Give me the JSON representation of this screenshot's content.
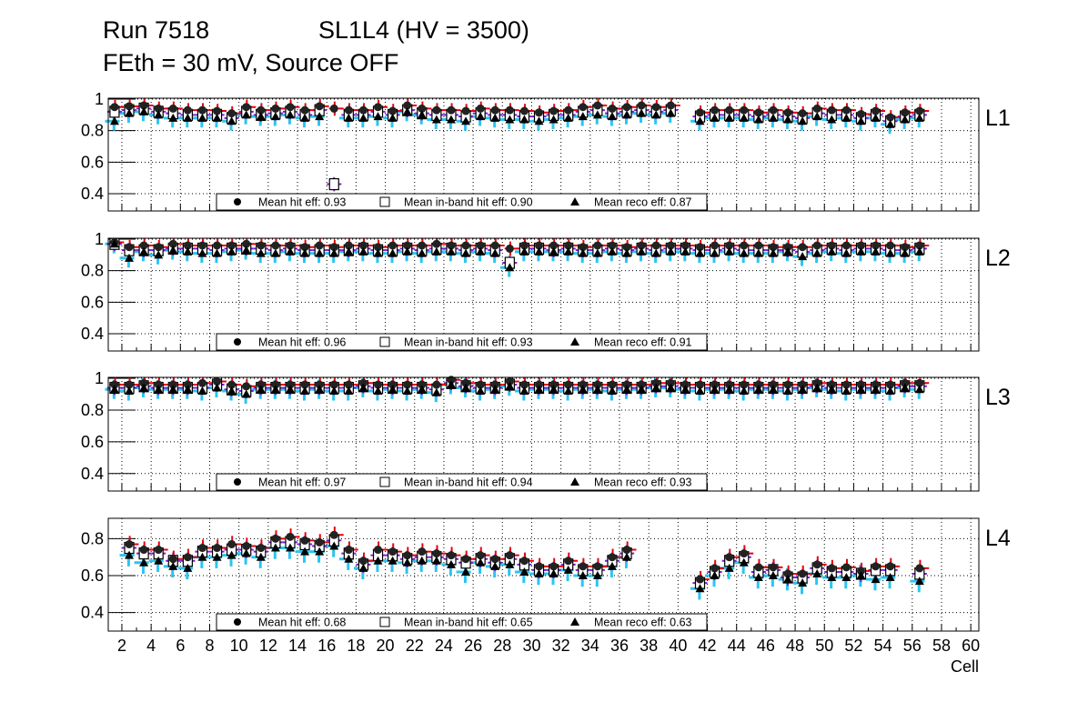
{
  "title": {
    "run": "Run 7518",
    "chamber": "SL1L4 (HV = 3500)",
    "settings": "FEth = 30 mV, Source OFF"
  },
  "chart_data": {
    "type": "scatter",
    "xlabel": "Cell",
    "xlim": [
      1.07,
      60.55
    ],
    "xticks": [
      2,
      4,
      6,
      8,
      10,
      12,
      14,
      16,
      18,
      20,
      22,
      24,
      26,
      28,
      30,
      32,
      34,
      36,
      38,
      40,
      42,
      44,
      46,
      48,
      50,
      52,
      54,
      56,
      58,
      60
    ],
    "grid": true,
    "colors": {
      "hit": "#e8000b",
      "inband": "#7b1fd6",
      "reco": "#2bc4f2",
      "marker": "#000000"
    },
    "legend_labels": {
      "hit": "Mean hit  eff: ",
      "inband": "Mean in-band hit eff: ",
      "reco": "Mean reco eff: "
    },
    "panels": [
      {
        "label": "L1",
        "ylim": [
          0.29,
          1.006
        ],
        "yticks": [
          0.4,
          0.6,
          0.8,
          1
        ],
        "ytick_labels": [
          "0.4",
          "0.6",
          "0.8",
          "1"
        ],
        "legend": {
          "hit": "0.93",
          "inband": "0.90",
          "reco": "0.87"
        },
        "cells": [
          1,
          2,
          3,
          4,
          5,
          6,
          7,
          8,
          9,
          10,
          11,
          12,
          13,
          14,
          15,
          16,
          17,
          18,
          19,
          20,
          21,
          22,
          23,
          24,
          25,
          26,
          27,
          28,
          29,
          30,
          31,
          32,
          33,
          34,
          35,
          36,
          37,
          38,
          39,
          41,
          42,
          43,
          44,
          45,
          46,
          47,
          48,
          49,
          50,
          51,
          52,
          53,
          54,
          55,
          56
        ],
        "hit": [
          0.95,
          0.955,
          0.96,
          0.94,
          0.94,
          0.93,
          0.93,
          0.925,
          0.91,
          0.95,
          0.93,
          0.94,
          0.95,
          0.93,
          0.955,
          0.94,
          0.93,
          0.93,
          0.95,
          0.925,
          0.96,
          0.94,
          0.93,
          0.93,
          0.925,
          0.94,
          0.93,
          0.93,
          0.925,
          0.915,
          0.925,
          0.93,
          0.95,
          0.96,
          0.94,
          0.95,
          0.96,
          0.95,
          0.96,
          0.915,
          0.93,
          0.93,
          0.93,
          0.915,
          0.93,
          0.915,
          0.91,
          0.94,
          0.93,
          0.93,
          0.905,
          0.925,
          0.885,
          0.915,
          0.925
        ],
        "inband": [
          0.92,
          0.93,
          0.94,
          0.92,
          0.91,
          0.9,
          0.9,
          0.9,
          0.88,
          0.92,
          0.9,
          0.91,
          0.92,
          0.9,
          0.93,
          0.46,
          0.9,
          0.9,
          0.92,
          0.9,
          0.93,
          0.91,
          0.9,
          0.9,
          0.89,
          0.91,
          0.9,
          0.9,
          0.89,
          0.89,
          0.9,
          0.9,
          0.92,
          0.93,
          0.91,
          0.92,
          0.93,
          0.92,
          0.93,
          0.89,
          0.9,
          0.9,
          0.9,
          0.89,
          0.9,
          0.89,
          0.88,
          0.91,
          0.9,
          0.9,
          0.88,
          0.9,
          0.86,
          0.89,
          0.9
        ],
        "reco": [
          0.86,
          0.91,
          0.92,
          0.9,
          0.88,
          0.88,
          0.88,
          0.88,
          0.86,
          0.9,
          0.89,
          0.89,
          0.9,
          0.88,
          0.89,
          null,
          0.88,
          0.88,
          0.89,
          0.88,
          0.92,
          0.9,
          0.87,
          0.87,
          0.86,
          0.89,
          0.88,
          0.87,
          0.87,
          0.86,
          0.87,
          0.88,
          0.89,
          0.9,
          0.89,
          0.9,
          0.91,
          0.9,
          0.91,
          0.86,
          0.88,
          0.88,
          0.88,
          0.87,
          0.88,
          0.87,
          0.86,
          0.89,
          0.87,
          0.88,
          0.86,
          0.88,
          0.84,
          0.87,
          0.88
        ]
      },
      {
        "label": "L2",
        "ylim": [
          0.29,
          1.006
        ],
        "yticks": [
          0.4,
          0.6,
          0.8,
          1
        ],
        "ytick_labels": [
          "0.4",
          "0.6",
          "0.8",
          "1"
        ],
        "legend": {
          "hit": "0.96",
          "inband": "0.93",
          "reco": "0.91"
        },
        "cells": [
          1,
          2,
          3,
          4,
          5,
          6,
          7,
          8,
          9,
          10,
          11,
          12,
          13,
          14,
          15,
          16,
          17,
          18,
          19,
          20,
          21,
          22,
          23,
          24,
          25,
          26,
          27,
          28,
          29,
          30,
          31,
          32,
          33,
          34,
          35,
          36,
          37,
          38,
          39,
          40,
          41,
          42,
          43,
          44,
          45,
          46,
          47,
          48,
          49,
          50,
          51,
          52,
          53,
          54,
          55,
          56
        ],
        "hit": [
          0.98,
          0.95,
          0.96,
          0.95,
          0.97,
          0.96,
          0.96,
          0.96,
          0.96,
          0.97,
          0.96,
          0.96,
          0.96,
          0.95,
          0.96,
          0.95,
          0.96,
          0.96,
          0.95,
          0.96,
          0.96,
          0.96,
          0.97,
          0.96,
          0.96,
          0.96,
          0.96,
          0.94,
          0.96,
          0.96,
          0.96,
          0.96,
          0.95,
          0.96,
          0.96,
          0.95,
          0.96,
          0.96,
          0.96,
          0.96,
          0.95,
          0.96,
          0.96,
          0.96,
          0.96,
          0.95,
          0.95,
          0.95,
          0.96,
          0.96,
          0.96,
          0.96,
          0.96,
          0.96,
          0.95,
          0.96
        ],
        "inband": [
          0.97,
          0.93,
          0.93,
          0.93,
          0.94,
          0.94,
          0.94,
          0.93,
          0.94,
          0.94,
          0.94,
          0.93,
          0.94,
          0.93,
          0.93,
          0.93,
          0.93,
          0.94,
          0.93,
          0.93,
          0.94,
          0.93,
          0.94,
          0.94,
          0.93,
          0.94,
          0.93,
          0.85,
          0.94,
          0.94,
          0.93,
          0.94,
          0.93,
          0.93,
          0.94,
          0.93,
          0.94,
          0.93,
          0.94,
          0.94,
          0.93,
          0.93,
          0.94,
          0.93,
          0.93,
          0.93,
          0.93,
          0.92,
          0.93,
          0.94,
          0.93,
          0.94,
          0.94,
          0.93,
          0.93,
          0.94
        ],
        "reco": [
          0.97,
          0.88,
          0.92,
          0.9,
          0.93,
          0.92,
          0.91,
          0.91,
          0.92,
          0.93,
          0.91,
          0.91,
          0.92,
          0.91,
          0.91,
          0.91,
          0.92,
          0.92,
          0.91,
          0.91,
          0.92,
          0.91,
          0.92,
          0.92,
          0.91,
          0.92,
          0.91,
          0.82,
          0.92,
          0.92,
          0.92,
          0.92,
          0.91,
          0.91,
          0.92,
          0.91,
          0.92,
          0.91,
          0.92,
          0.92,
          0.91,
          0.91,
          0.92,
          0.91,
          0.91,
          0.91,
          0.92,
          0.89,
          0.91,
          0.92,
          0.91,
          0.92,
          0.92,
          0.91,
          0.91,
          0.92
        ]
      },
      {
        "label": "L3",
        "ylim": [
          0.29,
          1.006
        ],
        "yticks": [
          0.4,
          0.6,
          0.8,
          1
        ],
        "ytick_labels": [
          "0.4",
          "0.6",
          "0.8",
          "1"
        ],
        "legend": {
          "hit": "0.97",
          "inband": "0.94",
          "reco": "0.93"
        },
        "cells": [
          1,
          2,
          3,
          4,
          5,
          6,
          7,
          8,
          9,
          10,
          11,
          12,
          13,
          14,
          15,
          16,
          17,
          18,
          19,
          20,
          21,
          22,
          23,
          24,
          25,
          26,
          27,
          28,
          29,
          30,
          31,
          32,
          33,
          34,
          35,
          36,
          37,
          38,
          39,
          40,
          41,
          42,
          43,
          44,
          45,
          46,
          47,
          48,
          49,
          50,
          51,
          52,
          53,
          54,
          55,
          56
        ],
        "hit": [
          0.96,
          0.96,
          0.97,
          0.96,
          0.96,
          0.96,
          0.97,
          0.98,
          0.96,
          0.95,
          0.96,
          0.96,
          0.96,
          0.96,
          0.96,
          0.96,
          0.96,
          0.97,
          0.96,
          0.96,
          0.96,
          0.96,
          0.96,
          0.99,
          0.97,
          0.96,
          0.96,
          0.98,
          0.96,
          0.96,
          0.96,
          0.96,
          0.96,
          0.96,
          0.96,
          0.96,
          0.96,
          0.97,
          0.97,
          0.96,
          0.96,
          0.96,
          0.96,
          0.96,
          0.96,
          0.96,
          0.96,
          0.96,
          0.97,
          0.96,
          0.96,
          0.96,
          0.96,
          0.96,
          0.97,
          0.97
        ],
        "inband": [
          0.94,
          0.94,
          0.95,
          0.94,
          0.94,
          0.94,
          0.94,
          0.96,
          0.93,
          0.92,
          0.94,
          0.94,
          0.94,
          0.94,
          0.94,
          0.94,
          0.94,
          0.95,
          0.94,
          0.94,
          0.94,
          0.94,
          0.93,
          0.97,
          0.95,
          0.94,
          0.94,
          0.96,
          0.94,
          0.94,
          0.94,
          0.94,
          0.94,
          0.94,
          0.94,
          0.94,
          0.94,
          0.95,
          0.95,
          0.94,
          0.94,
          0.94,
          0.94,
          0.94,
          0.94,
          0.94,
          0.94,
          0.94,
          0.95,
          0.94,
          0.94,
          0.94,
          0.94,
          0.94,
          0.95,
          0.95
        ],
        "reco": [
          0.93,
          0.92,
          0.94,
          0.93,
          0.93,
          0.93,
          0.92,
          0.94,
          0.92,
          0.9,
          0.93,
          0.93,
          0.93,
          0.92,
          0.93,
          0.92,
          0.92,
          0.94,
          0.92,
          0.93,
          0.92,
          0.93,
          0.91,
          0.96,
          0.94,
          0.92,
          0.93,
          0.95,
          0.92,
          0.93,
          0.93,
          0.92,
          0.93,
          0.93,
          0.92,
          0.93,
          0.93,
          0.94,
          0.94,
          0.93,
          0.92,
          0.93,
          0.93,
          0.92,
          0.93,
          0.93,
          0.92,
          0.93,
          0.94,
          0.93,
          0.92,
          0.93,
          0.93,
          0.92,
          0.94,
          0.93
        ]
      },
      {
        "label": "L4",
        "ylim": [
          0.3,
          0.91
        ],
        "yticks": [
          0.4,
          0.6,
          0.8
        ],
        "ytick_labels": [
          "0.4",
          "0.6",
          "0.8"
        ],
        "legend": {
          "hit": "0.68",
          "inband": "0.65",
          "reco": "0.63"
        },
        "cells": [
          2,
          3,
          4,
          5,
          6,
          7,
          8,
          9,
          10,
          11,
          12,
          13,
          14,
          15,
          16,
          17,
          18,
          19,
          20,
          21,
          22,
          23,
          24,
          25,
          26,
          27,
          28,
          29,
          30,
          31,
          32,
          33,
          34,
          35,
          36,
          41,
          42,
          43,
          44,
          45,
          46,
          47,
          48,
          49,
          50,
          51,
          52,
          53,
          54,
          56
        ],
        "hit": [
          0.77,
          0.74,
          0.74,
          0.69,
          0.7,
          0.75,
          0.75,
          0.77,
          0.76,
          0.75,
          0.8,
          0.81,
          0.79,
          0.78,
          0.82,
          0.74,
          0.68,
          0.74,
          0.73,
          0.71,
          0.73,
          0.72,
          0.71,
          0.69,
          0.71,
          0.69,
          0.71,
          0.68,
          0.65,
          0.65,
          0.68,
          0.65,
          0.65,
          0.7,
          0.74,
          0.58,
          0.64,
          0.7,
          0.72,
          0.645,
          0.645,
          0.61,
          0.61,
          0.66,
          0.64,
          0.645,
          0.625,
          0.65,
          0.65,
          0.64
        ],
        "inband": [
          0.75,
          0.72,
          0.72,
          0.68,
          0.68,
          0.73,
          0.73,
          0.74,
          0.74,
          0.73,
          0.78,
          0.78,
          0.77,
          0.76,
          0.79,
          0.72,
          0.66,
          0.71,
          0.71,
          0.69,
          0.7,
          0.7,
          0.69,
          0.67,
          0.69,
          0.67,
          0.69,
          0.66,
          0.63,
          0.63,
          0.66,
          0.63,
          0.63,
          0.68,
          0.72,
          0.56,
          0.62,
          0.68,
          0.7,
          0.62,
          0.63,
          0.59,
          0.59,
          0.64,
          0.62,
          0.62,
          0.61,
          0.63,
          0.63,
          0.61
        ],
        "reco": [
          0.71,
          0.67,
          0.68,
          0.65,
          0.64,
          0.7,
          0.7,
          0.71,
          0.72,
          0.7,
          0.75,
          0.75,
          0.73,
          0.73,
          0.76,
          0.69,
          0.64,
          0.68,
          0.68,
          0.67,
          0.68,
          0.68,
          0.66,
          0.62,
          0.67,
          0.65,
          0.66,
          0.62,
          0.61,
          0.61,
          0.63,
          0.6,
          0.6,
          0.65,
          0.7,
          0.53,
          0.6,
          0.64,
          0.67,
          0.59,
          0.6,
          0.58,
          0.56,
          0.61,
          0.59,
          0.59,
          0.6,
          0.58,
          0.59,
          0.57
        ]
      }
    ]
  }
}
